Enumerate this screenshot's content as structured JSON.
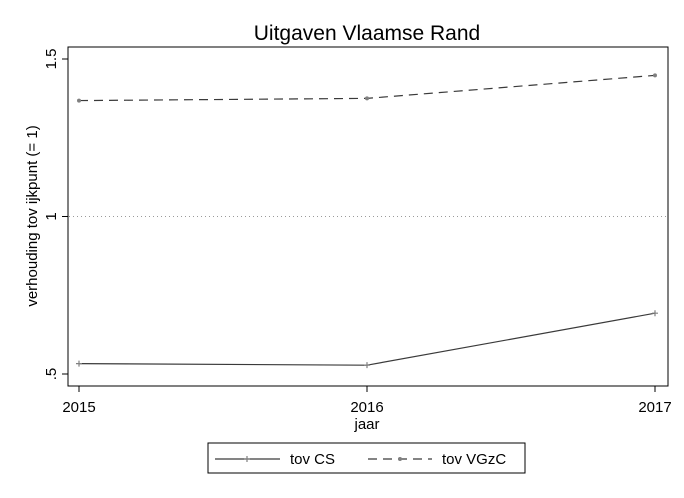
{
  "chart_data": {
    "type": "line",
    "title": "Uitgaven Vlaamse Rand",
    "xlabel": "jaar",
    "ylabel": "verhouding tov ijkpunt (= 1)",
    "x": [
      2015,
      2016,
      2017
    ],
    "xticks": [
      "2015",
      "2016",
      "2017"
    ],
    "yticks": [
      0.5,
      1,
      1.5
    ],
    "ytick_labels": [
      ".5",
      "1",
      "1.5"
    ],
    "ylim": [
      0.5,
      1.5
    ],
    "reference_line": 1,
    "grid": false,
    "legend_position": "bottom",
    "series": [
      {
        "name": "tov CS",
        "values": [
          0.533,
          0.528,
          0.693
        ],
        "style": "solid",
        "color": "#3a3a3a"
      },
      {
        "name": "tov VGzC",
        "values": [
          1.368,
          1.375,
          1.448
        ],
        "style": "dashed",
        "color": "#3a3a3a"
      }
    ]
  }
}
